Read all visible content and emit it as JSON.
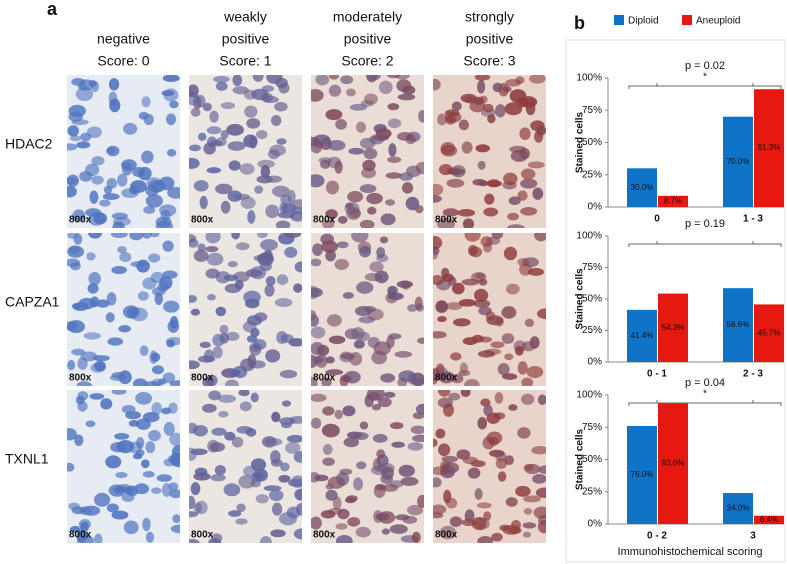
{
  "panel_a": {
    "label": "a",
    "columns": [
      {
        "header": [
          "negative"
        ],
        "score": "Score: 0"
      },
      {
        "header": [
          "weakly",
          "positive"
        ],
        "score": "Score: 1"
      },
      {
        "header": [
          "moderately",
          "positive"
        ],
        "score": "Score: 2"
      },
      {
        "header": [
          "strongly",
          "positive"
        ],
        "score": "Score: 3"
      }
    ],
    "rows": [
      "HDAC2",
      "CAPZA1",
      "TXNL1"
    ],
    "magnification": "800x"
  },
  "panel_b": {
    "label": "b",
    "xlabel": "Immunohistochemical scoring"
  },
  "chart_data": [
    {
      "type": "bar",
      "ylabel": "Stained cells",
      "annotation": "p = 0.02",
      "significance": "*",
      "categories": [
        "0",
        "1 - 3"
      ],
      "series": [
        {
          "name": "Diploid",
          "color": "#0f74c8",
          "values": [
            30.0,
            70.0
          ],
          "value_labels": [
            "30.0%",
            "70.0%"
          ]
        },
        {
          "name": "Aneuploid",
          "color": "#e5190f",
          "values": [
            8.7,
            91.3
          ],
          "value_labels": [
            "8.7%",
            "91.3%"
          ]
        }
      ],
      "ylim": [
        0,
        100
      ],
      "yticks": [
        {
          "value": 0,
          "label": "0%"
        },
        {
          "value": 25,
          "label": "25%"
        },
        {
          "value": 50,
          "label": "50%"
        },
        {
          "value": 75,
          "label": "75%"
        },
        {
          "value": 100,
          "label": "100%"
        }
      ]
    },
    {
      "type": "bar",
      "ylabel": "Stained cells",
      "annotation": "p = 0.19",
      "categories": [
        "0 - 1",
        "2 - 3"
      ],
      "series": [
        {
          "color": "#0f74c8",
          "values": [
            41.4,
            58.6
          ],
          "value_labels": [
            "41.4%",
            "58.6%"
          ]
        },
        {
          "color": "#e5190f",
          "values": [
            54.3,
            45.7
          ],
          "value_labels": [
            "54.3%",
            "45.7%"
          ]
        }
      ],
      "ylim": [
        0,
        100
      ],
      "yticks": [
        {
          "value": 0,
          "label": "0%"
        },
        {
          "value": 25,
          "label": "25%"
        },
        {
          "value": 50,
          "label": "50%"
        },
        {
          "value": 75,
          "label": "75%"
        },
        {
          "value": 100,
          "label": "100%"
        }
      ]
    },
    {
      "type": "bar",
      "ylabel": "Stained cells",
      "annotation": "p = 0.04",
      "significance": "*",
      "categories": [
        "0 - 2",
        "3"
      ],
      "series": [
        {
          "color": "#0f74c8",
          "values": [
            76.0,
            24.0
          ],
          "value_labels": [
            "76.0%",
            "24.0%"
          ]
        },
        {
          "color": "#e5190f",
          "values": [
            93.6,
            6.4
          ],
          "value_labels": [
            "93.6%",
            "6.4%"
          ]
        }
      ],
      "ylim": [
        0,
        100
      ],
      "yticks": [
        {
          "value": 0,
          "label": "0%"
        },
        {
          "value": 25,
          "label": "25%"
        },
        {
          "value": 50,
          "label": "50%"
        },
        {
          "value": 75,
          "label": "75%"
        },
        {
          "value": 100,
          "label": "100%"
        }
      ]
    }
  ]
}
